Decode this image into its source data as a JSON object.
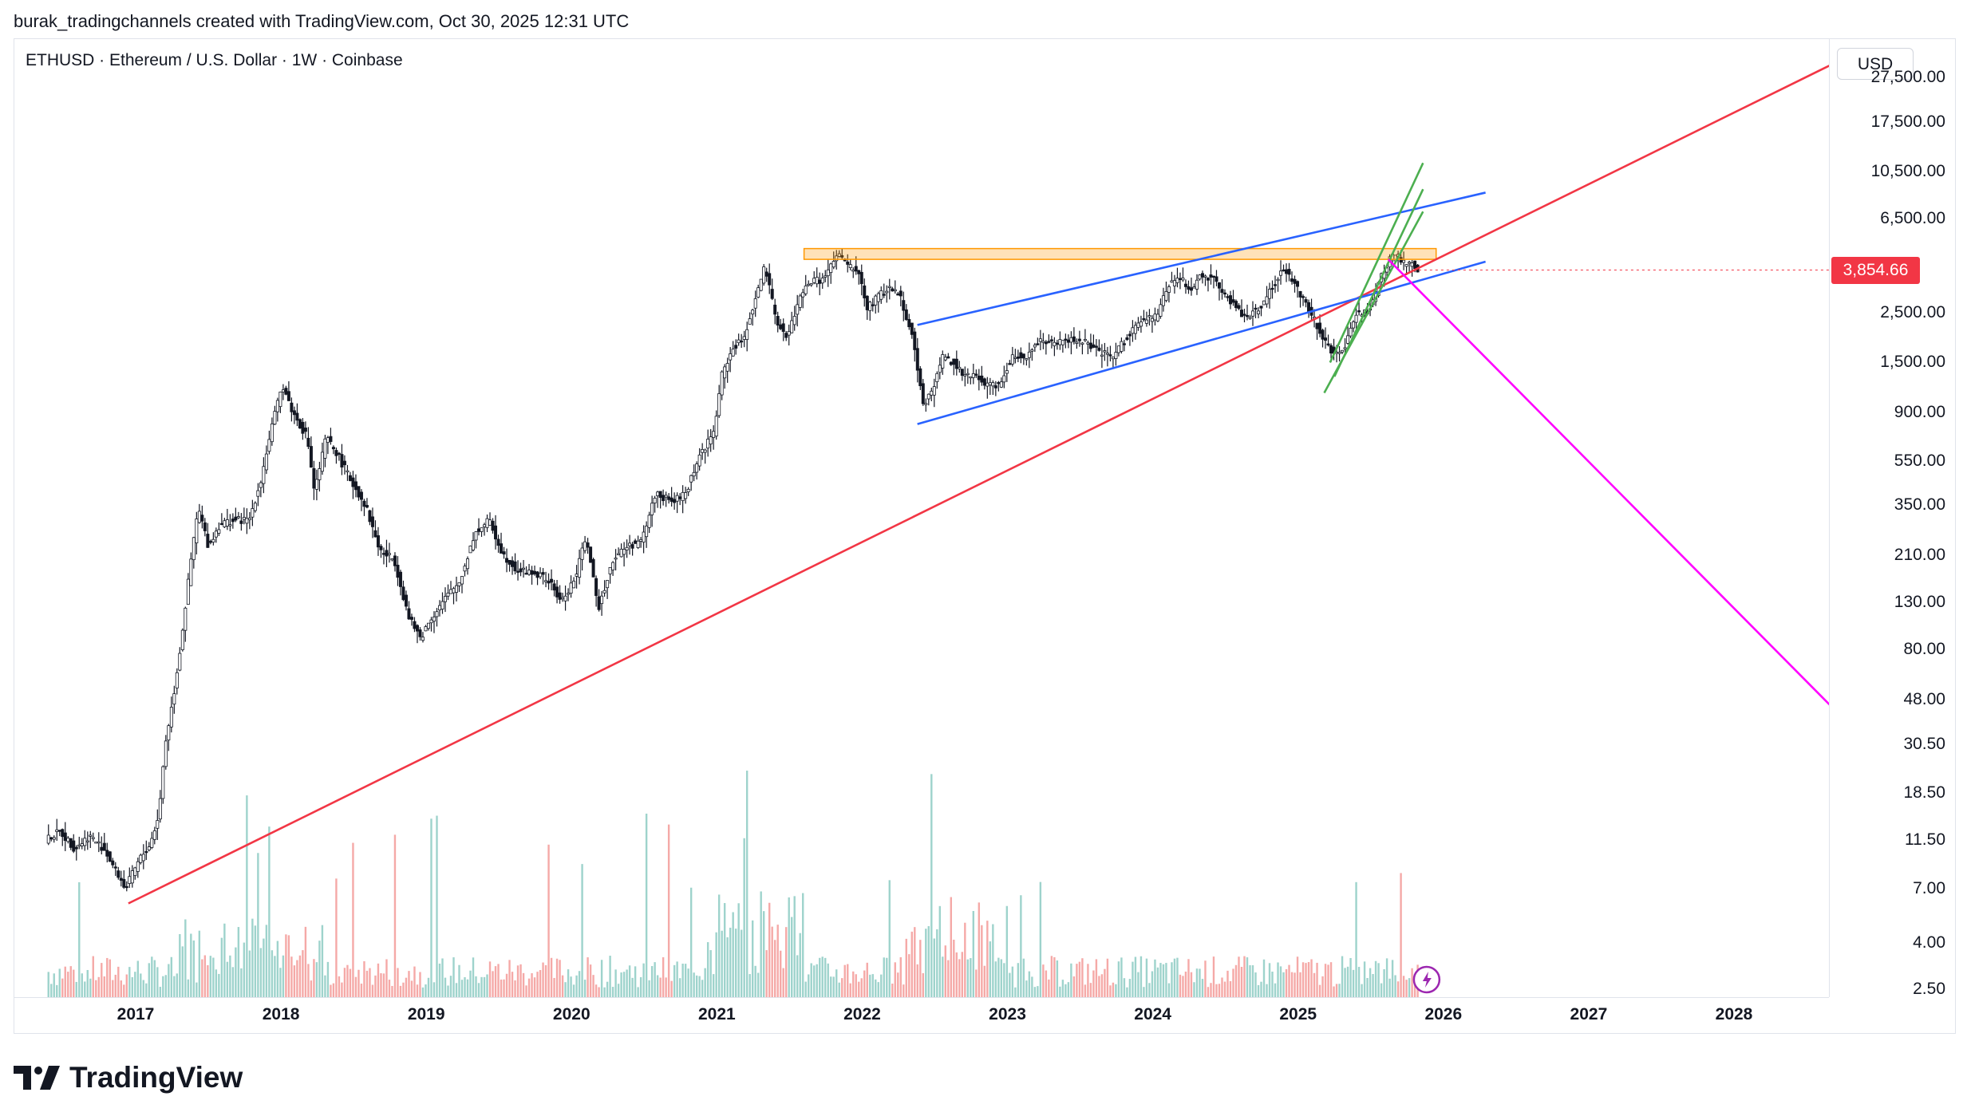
{
  "header": {
    "created_by": "burak_tradingchannels created with TradingView.com, Oct 30, 2025 12:31 UTC",
    "symbol": "ETHUSD · Ethereum / U.S. Dollar · 1W · Coinbase",
    "currency_button": "USD"
  },
  "last_price": {
    "label": "3,854.66",
    "value": 3854.66,
    "color": "#f23645"
  },
  "brand": {
    "name": "TradingView"
  },
  "colors": {
    "up": "#26a69a",
    "down": "#ef5350",
    "candle_body": "#131722",
    "support_line": "#f23645",
    "channel_line": "#2962ff",
    "short_channel": "#4caf50",
    "resistance_zone": "#ff9800",
    "projection": "#ff00ff"
  },
  "chart_data": {
    "type": "line",
    "title": "ETHUSD · Ethereum / U.S. Dollar · 1W · Coinbase",
    "scale": "log",
    "y_ticks": [
      {
        "label": "27,500.00",
        "value": 27500
      },
      {
        "label": "17,500.00",
        "value": 17500
      },
      {
        "label": "10,500.00",
        "value": 10500
      },
      {
        "label": "6,500.00",
        "value": 6500
      },
      {
        "label": "2,500.00",
        "value": 2500
      },
      {
        "label": "1,500.00",
        "value": 1500
      },
      {
        "label": "900.00",
        "value": 900
      },
      {
        "label": "550.00",
        "value": 550
      },
      {
        "label": "350.00",
        "value": 350
      },
      {
        "label": "210.00",
        "value": 210
      },
      {
        "label": "130.00",
        "value": 130
      },
      {
        "label": "80.00",
        "value": 80
      },
      {
        "label": "48.00",
        "value": 48
      },
      {
        "label": "30.50",
        "value": 30.5
      },
      {
        "label": "18.50",
        "value": 18.5
      },
      {
        "label": "11.50",
        "value": 11.5
      },
      {
        "label": "7.00",
        "value": 7
      },
      {
        "label": "4.00",
        "value": 4
      },
      {
        "label": "2.50",
        "value": 2.5
      }
    ],
    "x_ticks": [
      {
        "label": "2017",
        "year": 2017
      },
      {
        "label": "2018",
        "year": 2018
      },
      {
        "label": "2019",
        "year": 2019
      },
      {
        "label": "2020",
        "year": 2020
      },
      {
        "label": "2021",
        "year": 2021
      },
      {
        "label": "2022",
        "year": 2022
      },
      {
        "label": "2023",
        "year": 2023
      },
      {
        "label": "2024",
        "year": 2024
      },
      {
        "label": "2025",
        "year": 2025
      },
      {
        "label": "2026",
        "year": 2026
      },
      {
        "label": "2027",
        "year": 2027
      },
      {
        "label": "2028",
        "year": 2028
      }
    ],
    "x_range": [
      2016.4,
      2028.8
    ],
    "y_range": [
      2.3,
      34000
    ],
    "price_series": [
      [
        2016.4,
        11.5
      ],
      [
        2016.5,
        12.5
      ],
      [
        2016.6,
        10.5
      ],
      [
        2016.7,
        12.0
      ],
      [
        2016.8,
        10.5
      ],
      [
        2016.9,
        8.0
      ],
      [
        2016.95,
        7.0
      ],
      [
        2017.05,
        9.5
      ],
      [
        2017.12,
        11.0
      ],
      [
        2017.18,
        15.0
      ],
      [
        2017.22,
        30.0
      ],
      [
        2017.28,
        50.0
      ],
      [
        2017.33,
        85.0
      ],
      [
        2017.4,
        200.0
      ],
      [
        2017.45,
        340.0
      ],
      [
        2017.52,
        230.0
      ],
      [
        2017.6,
        290.0
      ],
      [
        2017.7,
        300.0
      ],
      [
        2017.8,
        300.0
      ],
      [
        2017.88,
        450.0
      ],
      [
        2017.95,
        750.0
      ],
      [
        2018.03,
        1200.0
      ],
      [
        2018.1,
        900.0
      ],
      [
        2018.2,
        700.0
      ],
      [
        2018.25,
        400.0
      ],
      [
        2018.33,
        700.0
      ],
      [
        2018.4,
        600.0
      ],
      [
        2018.5,
        450.0
      ],
      [
        2018.6,
        350.0
      ],
      [
        2018.7,
        220.0
      ],
      [
        2018.8,
        200.0
      ],
      [
        2018.9,
        110.0
      ],
      [
        2018.98,
        90.0
      ],
      [
        2019.05,
        110.0
      ],
      [
        2019.15,
        135.0
      ],
      [
        2019.25,
        160.0
      ],
      [
        2019.35,
        260.0
      ],
      [
        2019.45,
        300.0
      ],
      [
        2019.55,
        210.0
      ],
      [
        2019.65,
        180.0
      ],
      [
        2019.75,
        175.0
      ],
      [
        2019.85,
        165.0
      ],
      [
        2019.95,
        130.0
      ],
      [
        2020.05,
        170.0
      ],
      [
        2020.12,
        260.0
      ],
      [
        2020.2,
        120.0
      ],
      [
        2020.3,
        200.0
      ],
      [
        2020.4,
        230.0
      ],
      [
        2020.5,
        240.0
      ],
      [
        2020.6,
        400.0
      ],
      [
        2020.7,
        360.0
      ],
      [
        2020.8,
        390.0
      ],
      [
        2020.9,
        580.0
      ],
      [
        2021.0,
        740.0
      ],
      [
        2021.05,
        1300.0
      ],
      [
        2021.12,
        1700.0
      ],
      [
        2021.2,
        1900.0
      ],
      [
        2021.28,
        2800.0
      ],
      [
        2021.35,
        4000.0
      ],
      [
        2021.42,
        2400.0
      ],
      [
        2021.5,
        1900.0
      ],
      [
        2021.58,
        2800.0
      ],
      [
        2021.65,
        3400.0
      ],
      [
        2021.75,
        3500.0
      ],
      [
        2021.85,
        4500.0
      ],
      [
        2021.93,
        4000.0
      ],
      [
        2022.0,
        3700.0
      ],
      [
        2022.05,
        2600.0
      ],
      [
        2022.12,
        2900.0
      ],
      [
        2022.2,
        3200.0
      ],
      [
        2022.28,
        3000.0
      ],
      [
        2022.36,
        2000.0
      ],
      [
        2022.44,
        1000.0
      ],
      [
        2022.5,
        1100.0
      ],
      [
        2022.57,
        1600.0
      ],
      [
        2022.65,
        1500.0
      ],
      [
        2022.72,
        1300.0
      ],
      [
        2022.8,
        1300.0
      ],
      [
        2022.88,
        1200.0
      ],
      [
        2022.96,
        1200.0
      ],
      [
        2023.05,
        1600.0
      ],
      [
        2023.15,
        1600.0
      ],
      [
        2023.25,
        1900.0
      ],
      [
        2023.35,
        1800.0
      ],
      [
        2023.45,
        1900.0
      ],
      [
        2023.55,
        1850.0
      ],
      [
        2023.65,
        1650.0
      ],
      [
        2023.75,
        1600.0
      ],
      [
        2023.85,
        2000.0
      ],
      [
        2023.95,
        2300.0
      ],
      [
        2024.05,
        2400.0
      ],
      [
        2024.12,
        3300.0
      ],
      [
        2024.2,
        3600.0
      ],
      [
        2024.28,
        3100.0
      ],
      [
        2024.35,
        3700.0
      ],
      [
        2024.45,
        3500.0
      ],
      [
        2024.55,
        2800.0
      ],
      [
        2024.65,
        2400.0
      ],
      [
        2024.75,
        2600.0
      ],
      [
        2024.85,
        3300.0
      ],
      [
        2024.92,
        3900.0
      ],
      [
        2025.0,
        3300.0
      ],
      [
        2025.08,
        2700.0
      ],
      [
        2025.15,
        2200.0
      ],
      [
        2025.22,
        1800.0
      ],
      [
        2025.28,
        1600.0
      ],
      [
        2025.35,
        1800.0
      ],
      [
        2025.42,
        2500.0
      ],
      [
        2025.5,
        2500.0
      ],
      [
        2025.55,
        3000.0
      ],
      [
        2025.6,
        3700.0
      ],
      [
        2025.65,
        4300.0
      ],
      [
        2025.7,
        4500.0
      ],
      [
        2025.75,
        4100.0
      ],
      [
        2025.8,
        4100.0
      ],
      [
        2025.83,
        3854.66
      ]
    ],
    "annotations": [
      {
        "name": "long-term-support-line",
        "color": "#f23645",
        "points": [
          [
            2016.95,
            6.0
          ],
          [
            2028.78,
            34000.0
          ]
        ]
      },
      {
        "name": "wedge-upper-line",
        "color": "#2962ff",
        "points": [
          [
            2022.38,
            2200.0
          ],
          [
            2026.29,
            8500.0
          ]
        ]
      },
      {
        "name": "wedge-lower-line",
        "color": "#2962ff",
        "points": [
          [
            2022.38,
            800.0
          ],
          [
            2026.29,
            4200.0
          ]
        ]
      },
      {
        "name": "green-channel-upper-line",
        "color": "#4caf50",
        "points": [
          [
            2025.22,
            1500.0
          ],
          [
            2025.86,
            11500.0
          ]
        ]
      },
      {
        "name": "green-channel-lower-line",
        "color": "#4caf50",
        "points": [
          [
            2025.18,
            1100.0
          ],
          [
            2025.86,
            7000.0
          ]
        ]
      },
      {
        "name": "green-channel-mid-line",
        "color": "#4caf50",
        "points": [
          [
            2025.25,
            1300.0
          ],
          [
            2025.86,
            8800.0
          ]
        ]
      },
      {
        "name": "projection-line",
        "color": "#ff00ff",
        "points": [
          [
            2025.62,
            4300.0
          ],
          [
            2028.78,
            38.0
          ]
        ]
      }
    ],
    "resistance_zone": {
      "from_x": 2021.6,
      "to_x": 2025.95,
      "low": 4300,
      "high": 4800
    },
    "volume_series_note": "weekly volume histogram at bottom",
    "grid": false,
    "legend": "none"
  }
}
